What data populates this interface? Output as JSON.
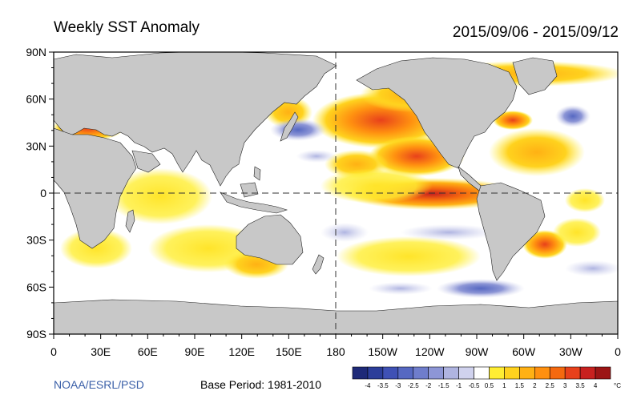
{
  "title": "Weekly SST Anomaly",
  "date_range": "2015/09/06 - 2015/09/12",
  "credit": "NOAA/ESRL/PSD",
  "base_period": "Base Period: 1981-2010",
  "lat_labels": [
    "90N",
    "60N",
    "30N",
    "0",
    "30S",
    "60S",
    "90S"
  ],
  "lon_labels": [
    "0",
    "30E",
    "60E",
    "90E",
    "120E",
    "150E",
    "180",
    "150W",
    "120W",
    "90W",
    "60W",
    "30W",
    "0"
  ],
  "colorbar": {
    "tick_labels": [
      "-4",
      "-3.5",
      "-3",
      "-2.5",
      "-2",
      "-1.5",
      "-1",
      "-0.5",
      "0.5",
      "1",
      "1.5",
      "2",
      "2.5",
      "3",
      "3.5",
      "4"
    ],
    "unit": "°C",
    "colors": [
      "#1e2a78",
      "#2c3e9a",
      "#3f51b5",
      "#5668c2",
      "#6f7dcc",
      "#8d96d6",
      "#afb4e1",
      "#d0d2ee",
      "#ffffff",
      "#ffee33",
      "#ffd21e",
      "#ffb114",
      "#ff9010",
      "#f5690f",
      "#e8411b",
      "#c8211f",
      "#9c1515"
    ]
  },
  "colors": {
    "land": "#c8c8c8",
    "ocean": "#ffffff",
    "coast": "#222222"
  }
}
